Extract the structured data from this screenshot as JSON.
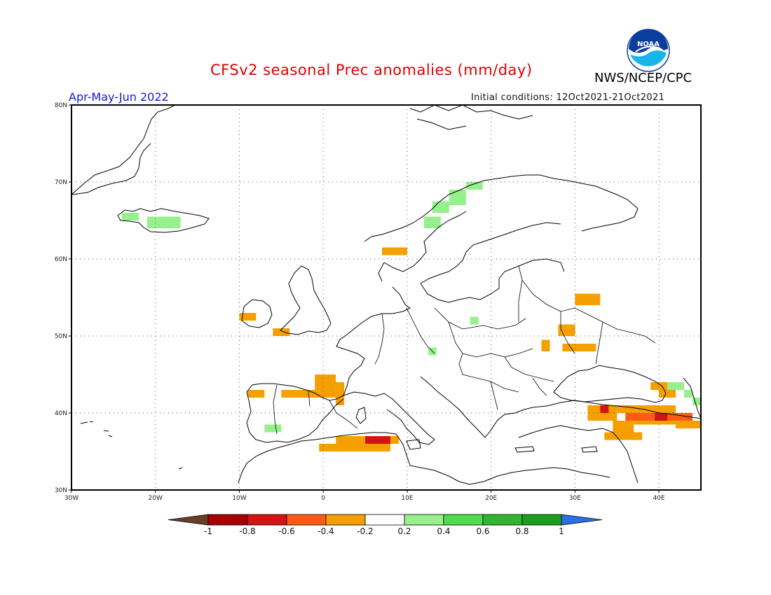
{
  "title": "CFSv2 seasonal Prec anomalies (mm/day)",
  "agency": "NWS/NCEP/CPC",
  "logo_text": "NOAA",
  "season": "Apr-May-Jun 2022",
  "initial_conditions": "Initial conditions: 12Oct2021-21Oct2021",
  "map": {
    "lon_range": [
      -30,
      45
    ],
    "lat_range": [
      30,
      80
    ],
    "lon_ticks": [
      "30W",
      "20W",
      "10W",
      "0",
      "10E",
      "20E",
      "30E",
      "40E"
    ],
    "lat_ticks": [
      "80N",
      "70N",
      "60N",
      "50N",
      "40N",
      "30N"
    ]
  },
  "colorbar": {
    "labels": [
      "-1",
      "-0.8",
      "-0.6",
      "-0.4",
      "-0.2",
      "0.2",
      "0.4",
      "0.6",
      "0.8",
      "1"
    ],
    "colors": [
      "#6b3d27",
      "#a80000",
      "#d21414",
      "#ff5a14",
      "#f5a000",
      "#ffffff",
      "#96f08c",
      "#50dc50",
      "#32b432",
      "#1e9c1e",
      "#2b6fe6"
    ]
  },
  "anomaly_colors": {
    "light_green": "#96f08c",
    "orange": "#f5a000",
    "dark_orange": "#ff5a14",
    "red": "#d21414"
  },
  "anomalies": [
    {
      "lon": [
        -24,
        -22
      ],
      "lat": [
        65,
        66
      ],
      "c": "light_green"
    },
    {
      "lon": [
        -21,
        -17
      ],
      "lat": [
        64,
        65.5
      ],
      "c": "light_green"
    },
    {
      "lon": [
        13,
        15
      ],
      "lat": [
        66,
        67.5
      ],
      "c": "light_green"
    },
    {
      "lon": [
        15,
        17
      ],
      "lat": [
        67,
        69
      ],
      "c": "light_green"
    },
    {
      "lon": [
        17,
        19
      ],
      "lat": [
        69,
        70
      ],
      "c": "light_green"
    },
    {
      "lon": [
        12,
        14
      ],
      "lat": [
        64,
        65.5
      ],
      "c": "light_green"
    },
    {
      "lon": [
        7,
        10
      ],
      "lat": [
        60.5,
        61.5
      ],
      "c": "orange"
    },
    {
      "lon": [
        -10,
        -8
      ],
      "lat": [
        52,
        53
      ],
      "c": "orange"
    },
    {
      "lon": [
        -6,
        -4
      ],
      "lat": [
        50,
        51
      ],
      "c": "orange"
    },
    {
      "lon": [
        -1,
        1.5
      ],
      "lat": [
        42,
        45
      ],
      "c": "orange"
    },
    {
      "lon": [
        1.5,
        2.5
      ],
      "lat": [
        42,
        44
      ],
      "c": "orange"
    },
    {
      "lon": [
        -9,
        -7
      ],
      "lat": [
        42,
        43
      ],
      "c": "orange"
    },
    {
      "lon": [
        -5,
        1.5
      ],
      "lat": [
        42,
        43
      ],
      "c": "orange"
    },
    {
      "lon": [
        1.5,
        2.5
      ],
      "lat": [
        41,
        42
      ],
      "c": "orange"
    },
    {
      "lon": [
        -7,
        -5
      ],
      "lat": [
        37.5,
        38.5
      ],
      "c": "light_green"
    },
    {
      "lon": [
        -0.5,
        8
      ],
      "lat": [
        35,
        36
      ],
      "c": "orange"
    },
    {
      "lon": [
        1.5,
        5
      ],
      "lat": [
        36,
        37
      ],
      "c": "orange"
    },
    {
      "lon": [
        8,
        9
      ],
      "lat": [
        36,
        37
      ],
      "c": "orange"
    },
    {
      "lon": [
        5,
        8
      ],
      "lat": [
        36,
        37
      ],
      "c": "red"
    },
    {
      "lon": [
        17.5,
        18.5
      ],
      "lat": [
        51.5,
        52.5
      ],
      "c": "light_green"
    },
    {
      "lon": [
        12.5,
        13.5
      ],
      "lat": [
        47.5,
        48.5
      ],
      "c": "light_green"
    },
    {
      "lon": [
        30,
        33
      ],
      "lat": [
        54,
        55.5
      ],
      "c": "orange"
    },
    {
      "lon": [
        28,
        30
      ],
      "lat": [
        50,
        51.5
      ],
      "c": "orange"
    },
    {
      "lon": [
        26,
        27
      ],
      "lat": [
        48,
        49.5
      ],
      "c": "orange"
    },
    {
      "lon": [
        28.5,
        32.5
      ],
      "lat": [
        48,
        49
      ],
      "c": "orange"
    },
    {
      "lon": [
        39,
        41
      ],
      "lat": [
        43,
        44
      ],
      "c": "orange"
    },
    {
      "lon": [
        40,
        42
      ],
      "lat": [
        42,
        43
      ],
      "c": "orange"
    },
    {
      "lon": [
        41,
        43
      ],
      "lat": [
        43,
        44
      ],
      "c": "light_green"
    },
    {
      "lon": [
        43,
        44
      ],
      "lat": [
        42,
        43
      ],
      "c": "light_green"
    },
    {
      "lon": [
        44,
        45
      ],
      "lat": [
        41,
        42
      ],
      "c": "light_green"
    },
    {
      "lon": [
        31.5,
        35
      ],
      "lat": [
        39,
        41
      ],
      "c": "orange"
    },
    {
      "lon": [
        35,
        42
      ],
      "lat": [
        40,
        41
      ],
      "c": "orange"
    },
    {
      "lon": [
        33,
        34
      ],
      "lat": [
        40,
        41
      ],
      "c": "red"
    },
    {
      "lon": [
        34.5,
        37
      ],
      "lat": [
        37,
        39
      ],
      "c": "orange"
    },
    {
      "lon": [
        33.5,
        38
      ],
      "lat": [
        36.5,
        37.5
      ],
      "c": "orange"
    },
    {
      "lon": [
        37,
        42
      ],
      "lat": [
        38.5,
        40
      ],
      "c": "orange"
    },
    {
      "lon": [
        36,
        43
      ],
      "lat": [
        39,
        40
      ],
      "c": "dark_orange"
    },
    {
      "lon": [
        39.5,
        41
      ],
      "lat": [
        39,
        40
      ],
      "c": "red"
    },
    {
      "lon": [
        42,
        45
      ],
      "lat": [
        38,
        39
      ],
      "c": "orange"
    },
    {
      "lon": [
        43,
        44
      ],
      "lat": [
        39,
        40
      ],
      "c": "dark_orange"
    }
  ]
}
